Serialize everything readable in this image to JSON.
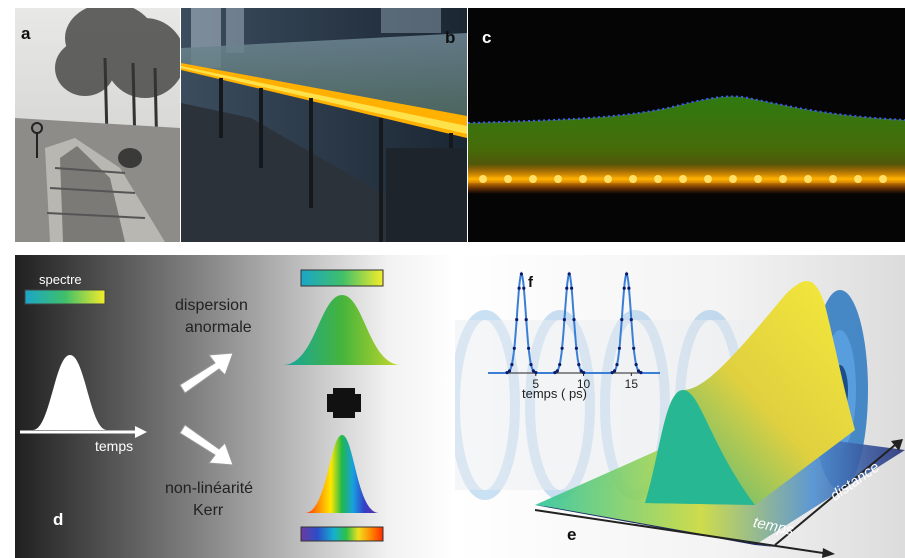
{
  "panels": {
    "a": {
      "label": "a"
    },
    "b": {
      "label": "b"
    },
    "c": {
      "label": "c"
    },
    "d": {
      "label": "d",
      "spectre_label": "spectre",
      "temps_label": "temps",
      "dispersion_line1": "dispersion",
      "dispersion_line2": "anormale",
      "kerr_line1": "non-linéarité",
      "kerr_line2": "Kerr",
      "plus_sign": "+"
    },
    "e": {
      "label": "e",
      "temps_axis": "temps",
      "distance_axis": "distance"
    },
    "f": {
      "label": "f",
      "xlabel": "temps ( ps)",
      "ticks": [
        "5",
        "10",
        "15"
      ]
    }
  },
  "chart_data": {
    "type": "line",
    "x": [
      3.5,
      8.5,
      14.5
    ],
    "series": [
      {
        "values": [
          1,
          1,
          1
        ]
      }
    ],
    "xlabel": "temps ( ps)",
    "xticks": [
      5,
      10,
      15
    ]
  }
}
